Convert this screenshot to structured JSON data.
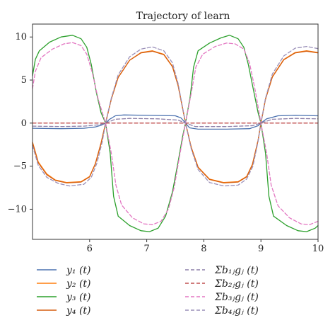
{
  "chart_data": {
    "type": "line",
    "title": "Trajectory of learn",
    "xlabel": "",
    "ylabel": "",
    "xlim": [
      5,
      10
    ],
    "ylim": [
      -13.5,
      11.5
    ],
    "xticks": [
      6,
      7,
      8,
      9,
      10
    ],
    "yticks": [
      10,
      5,
      0,
      -5,
      -10
    ],
    "grid": false,
    "legend": {
      "placement": "below",
      "entries": [
        {
          "label": "y₁ (t)",
          "color": "#4c72b0",
          "dash": "solid"
        },
        {
          "label": "y₂ (t)",
          "color": "#ff7f0e",
          "dash": "solid"
        },
        {
          "label": "y₃ (t)",
          "color": "#2ca02c",
          "dash": "solid"
        },
        {
          "label": "y₄ (t)",
          "color": "#d65f10",
          "dash": "solid"
        },
        {
          "label": "Σb₁ⱼgⱼ (t)",
          "color": "#8c7fa8",
          "dash": "dashed"
        },
        {
          "label": "Σb₂ⱼgⱼ (t)",
          "color": "#c05050",
          "dash": "dashed"
        },
        {
          "label": "Σb₃ⱼgⱼ (t)",
          "color": "#e377c2",
          "dash": "dashed"
        },
        {
          "label": "Σb₄ⱼgⱼ (t)",
          "color": "#9a8fb8",
          "dash": "dashed"
        }
      ]
    },
    "series": [
      {
        "color": "#4c72b0",
        "dash": "solid",
        "points": [
          [
            5.0,
            -0.6
          ],
          [
            5.5,
            -0.65
          ],
          [
            5.9,
            -0.6
          ],
          [
            6.1,
            -0.45
          ],
          [
            6.2,
            -0.25
          ],
          [
            6.28,
            0.0
          ],
          [
            6.35,
            0.45
          ],
          [
            6.45,
            0.85
          ],
          [
            6.6,
            0.95
          ],
          [
            7.0,
            0.9
          ],
          [
            7.5,
            0.85
          ],
          [
            7.6,
            0.6
          ],
          [
            7.68,
            0.0
          ],
          [
            7.75,
            -0.55
          ],
          [
            7.9,
            -0.7
          ],
          [
            8.4,
            -0.7
          ],
          [
            8.8,
            -0.65
          ],
          [
            8.95,
            -0.3
          ],
          [
            9.0,
            0.0
          ],
          [
            9.1,
            0.5
          ],
          [
            9.3,
            0.85
          ],
          [
            9.6,
            0.9
          ],
          [
            10.0,
            0.85
          ]
        ]
      },
      {
        "color": "#ff7f0e",
        "dash": "solid",
        "points": [
          [
            5.0,
            -2.2
          ],
          [
            5.1,
            -4.5
          ],
          [
            5.25,
            -5.9
          ],
          [
            5.4,
            -6.6
          ],
          [
            5.6,
            -6.9
          ],
          [
            5.85,
            -6.8
          ],
          [
            6.0,
            -6.2
          ],
          [
            6.1,
            -4.7
          ],
          [
            6.2,
            -2.3
          ],
          [
            6.28,
            0.0
          ],
          [
            6.38,
            2.8
          ],
          [
            6.5,
            5.3
          ],
          [
            6.7,
            7.3
          ],
          [
            6.9,
            8.2
          ],
          [
            7.1,
            8.4
          ],
          [
            7.3,
            8.0
          ],
          [
            7.45,
            6.6
          ],
          [
            7.55,
            4.4
          ],
          [
            7.62,
            2.0
          ],
          [
            7.68,
            0.0
          ],
          [
            7.78,
            -2.8
          ],
          [
            7.9,
            -5.1
          ],
          [
            8.1,
            -6.5
          ],
          [
            8.35,
            -6.9
          ],
          [
            8.6,
            -6.8
          ],
          [
            8.75,
            -6.2
          ],
          [
            8.85,
            -4.8
          ],
          [
            8.95,
            -2.0
          ],
          [
            9.0,
            0.0
          ],
          [
            9.08,
            2.8
          ],
          [
            9.2,
            5.4
          ],
          [
            9.4,
            7.4
          ],
          [
            9.6,
            8.2
          ],
          [
            9.8,
            8.4
          ],
          [
            10.0,
            8.2
          ]
        ]
      },
      {
        "color": "#2ca02c",
        "dash": "solid",
        "points": [
          [
            5.0,
            5.5
          ],
          [
            5.05,
            7.4
          ],
          [
            5.12,
            8.4
          ],
          [
            5.3,
            9.4
          ],
          [
            5.5,
            10.0
          ],
          [
            5.7,
            10.2
          ],
          [
            5.85,
            9.8
          ],
          [
            5.95,
            8.8
          ],
          [
            6.03,
            6.8
          ],
          [
            6.12,
            3.5
          ],
          [
            6.2,
            1.2
          ],
          [
            6.28,
            0.0
          ],
          [
            6.36,
            -3.5
          ],
          [
            6.42,
            -8.5
          ],
          [
            6.5,
            -10.8
          ],
          [
            6.7,
            -11.9
          ],
          [
            6.9,
            -12.5
          ],
          [
            7.05,
            -12.6
          ],
          [
            7.2,
            -12.2
          ],
          [
            7.33,
            -10.8
          ],
          [
            7.45,
            -8.0
          ],
          [
            7.55,
            -4.5
          ],
          [
            7.63,
            -1.5
          ],
          [
            7.68,
            0.0
          ],
          [
            7.76,
            3.0
          ],
          [
            7.82,
            6.5
          ],
          [
            7.9,
            8.4
          ],
          [
            8.1,
            9.3
          ],
          [
            8.3,
            9.9
          ],
          [
            8.45,
            10.2
          ],
          [
            8.6,
            9.8
          ],
          [
            8.7,
            8.8
          ],
          [
            8.78,
            6.8
          ],
          [
            8.88,
            3.5
          ],
          [
            8.95,
            1.2
          ],
          [
            9.0,
            0.0
          ],
          [
            9.08,
            -3.5
          ],
          [
            9.14,
            -8.5
          ],
          [
            9.22,
            -10.8
          ],
          [
            9.45,
            -11.9
          ],
          [
            9.65,
            -12.5
          ],
          [
            9.8,
            -12.6
          ],
          [
            9.95,
            -12.2
          ],
          [
            10.0,
            -11.9
          ]
        ]
      },
      {
        "color": "#d65f10",
        "dash": "solid",
        "points": [
          [
            5.0,
            -2.3
          ],
          [
            5.1,
            -4.6
          ],
          [
            5.25,
            -6.0
          ],
          [
            5.4,
            -6.65
          ],
          [
            5.6,
            -6.95
          ],
          [
            5.85,
            -6.85
          ],
          [
            6.0,
            -6.25
          ],
          [
            6.1,
            -4.75
          ],
          [
            6.2,
            -2.35
          ],
          [
            6.28,
            0.0
          ],
          [
            6.38,
            2.8
          ],
          [
            6.5,
            5.3
          ],
          [
            6.7,
            7.3
          ],
          [
            6.9,
            8.15
          ],
          [
            7.1,
            8.35
          ],
          [
            7.3,
            7.95
          ],
          [
            7.45,
            6.55
          ],
          [
            7.55,
            4.35
          ],
          [
            7.62,
            2.0
          ],
          [
            7.68,
            0.0
          ],
          [
            7.78,
            -2.85
          ],
          [
            7.9,
            -5.15
          ],
          [
            8.1,
            -6.55
          ],
          [
            8.35,
            -6.95
          ],
          [
            8.6,
            -6.85
          ],
          [
            8.75,
            -6.25
          ],
          [
            8.85,
            -4.85
          ],
          [
            8.95,
            -2.0
          ],
          [
            9.0,
            0.0
          ],
          [
            9.08,
            2.8
          ],
          [
            9.2,
            5.35
          ],
          [
            9.4,
            7.35
          ],
          [
            9.6,
            8.15
          ],
          [
            9.8,
            8.35
          ],
          [
            10.0,
            8.15
          ]
        ]
      },
      {
        "color": "#8c7fa8",
        "dash": "dashed",
        "points": [
          [
            5.0,
            -0.35
          ],
          [
            5.5,
            -0.4
          ],
          [
            5.9,
            -0.35
          ],
          [
            6.15,
            -0.2
          ],
          [
            6.28,
            0.0
          ],
          [
            6.45,
            0.45
          ],
          [
            6.7,
            0.55
          ],
          [
            7.2,
            0.5
          ],
          [
            7.55,
            0.35
          ],
          [
            7.68,
            0.0
          ],
          [
            7.85,
            -0.4
          ],
          [
            8.4,
            -0.4
          ],
          [
            8.85,
            -0.3
          ],
          [
            9.0,
            0.0
          ],
          [
            9.2,
            0.45
          ],
          [
            9.6,
            0.55
          ],
          [
            10.0,
            0.5
          ]
        ]
      },
      {
        "color": "#c05050",
        "dash": "dashed",
        "points": [
          [
            5.0,
            0.0
          ],
          [
            10.0,
            0.0
          ]
        ]
      },
      {
        "color": "#e377c2",
        "dash": "dashed",
        "points": [
          [
            5.0,
            4.0
          ],
          [
            5.05,
            6.0
          ],
          [
            5.15,
            7.6
          ],
          [
            5.35,
            8.6
          ],
          [
            5.55,
            9.2
          ],
          [
            5.7,
            9.35
          ],
          [
            5.85,
            9.0
          ],
          [
            5.95,
            8.0
          ],
          [
            6.05,
            5.8
          ],
          [
            6.15,
            2.8
          ],
          [
            6.28,
            0.0
          ],
          [
            6.38,
            -3.5
          ],
          [
            6.46,
            -7.2
          ],
          [
            6.56,
            -9.5
          ],
          [
            6.75,
            -11.0
          ],
          [
            6.95,
            -11.7
          ],
          [
            7.1,
            -11.8
          ],
          [
            7.25,
            -11.4
          ],
          [
            7.38,
            -10.0
          ],
          [
            7.48,
            -7.5
          ],
          [
            7.57,
            -4.0
          ],
          [
            7.68,
            0.0
          ],
          [
            7.78,
            3.5
          ],
          [
            7.86,
            6.5
          ],
          [
            7.98,
            8.0
          ],
          [
            8.2,
            8.9
          ],
          [
            8.4,
            9.3
          ],
          [
            8.55,
            9.2
          ],
          [
            8.7,
            8.6
          ],
          [
            8.8,
            7.0
          ],
          [
            8.9,
            3.8
          ],
          [
            9.0,
            0.0
          ],
          [
            9.1,
            -3.5
          ],
          [
            9.18,
            -7.2
          ],
          [
            9.3,
            -9.6
          ],
          [
            9.5,
            -11.0
          ],
          [
            9.7,
            -11.7
          ],
          [
            9.85,
            -11.8
          ],
          [
            10.0,
            -11.4
          ]
        ]
      },
      {
        "color": "#9a8fb8",
        "dash": "dashed",
        "points": [
          [
            5.0,
            -2.6
          ],
          [
            5.1,
            -4.9
          ],
          [
            5.25,
            -6.3
          ],
          [
            5.45,
            -7.0
          ],
          [
            5.65,
            -7.3
          ],
          [
            5.9,
            -7.1
          ],
          [
            6.03,
            -6.3
          ],
          [
            6.13,
            -4.6
          ],
          [
            6.22,
            -2.2
          ],
          [
            6.28,
            0.0
          ],
          [
            6.38,
            2.9
          ],
          [
            6.5,
            5.6
          ],
          [
            6.7,
            7.7
          ],
          [
            6.9,
            8.6
          ],
          [
            7.1,
            8.85
          ],
          [
            7.3,
            8.4
          ],
          [
            7.45,
            7.0
          ],
          [
            7.55,
            4.6
          ],
          [
            7.62,
            2.1
          ],
          [
            7.68,
            0.0
          ],
          [
            7.78,
            -3.0
          ],
          [
            7.9,
            -5.4
          ],
          [
            8.1,
            -6.9
          ],
          [
            8.35,
            -7.3
          ],
          [
            8.6,
            -7.2
          ],
          [
            8.75,
            -6.5
          ],
          [
            8.86,
            -5.0
          ],
          [
            8.95,
            -2.1
          ],
          [
            9.0,
            0.0
          ],
          [
            9.08,
            2.9
          ],
          [
            9.2,
            5.7
          ],
          [
            9.4,
            7.8
          ],
          [
            9.6,
            8.7
          ],
          [
            9.8,
            8.9
          ],
          [
            10.0,
            8.65
          ]
        ]
      }
    ]
  }
}
